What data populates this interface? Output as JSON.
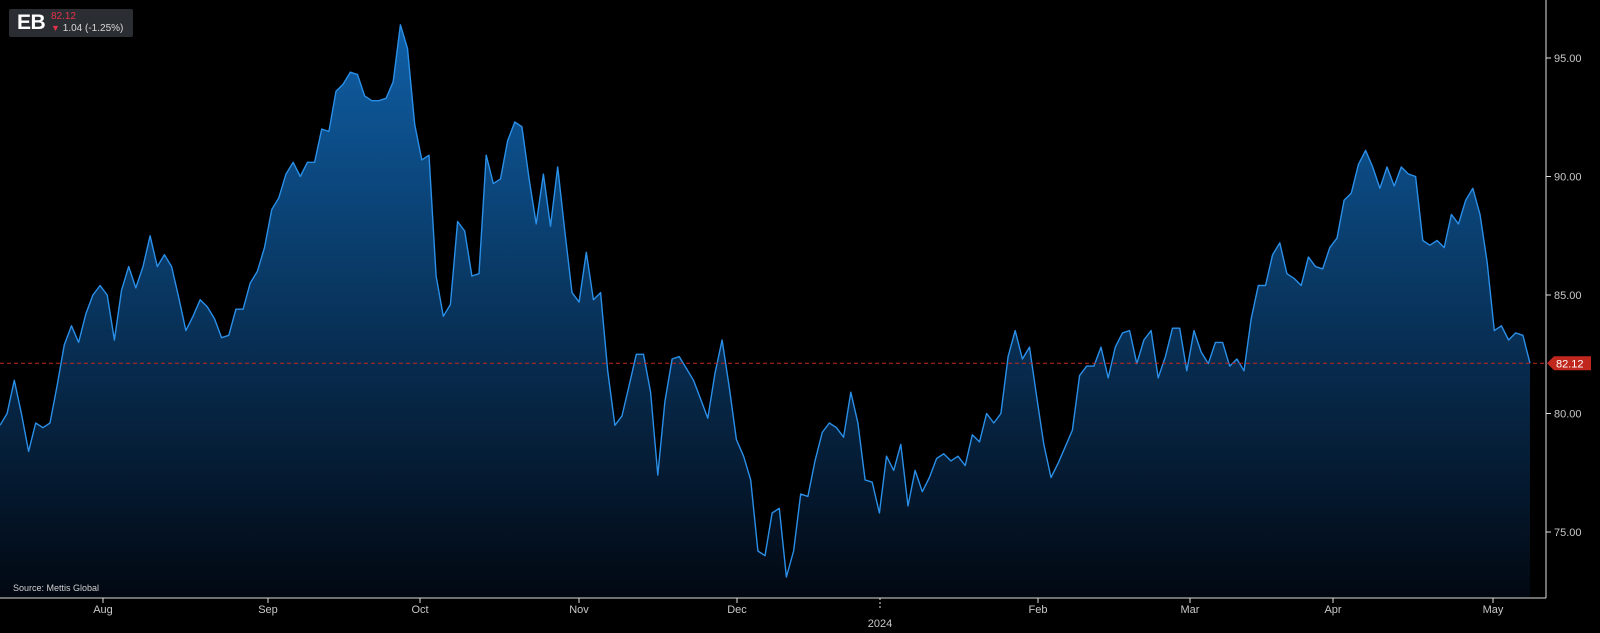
{
  "ticker": {
    "symbol": "EB",
    "price": "82.12",
    "change": "1.04 (-1.25%)"
  },
  "source_note": "Source: Mettis Global",
  "colors": {
    "background": "#000000",
    "line": "#2a8fe8",
    "fill_top": "#0f5fa6",
    "fill_bottom": "#020812",
    "last_price_line": "#c0271d",
    "last_price_label": "#c0271d",
    "negative": "#e2324b"
  },
  "icons": {
    "change_direction": "down-arrow-icon"
  },
  "chart_data": {
    "type": "area",
    "title": "",
    "xlabel": "",
    "ylabel": "",
    "ylim": [
      72.4,
      97.5
    ],
    "grid": false,
    "y_axis_side": "right",
    "yticks": [
      "95.00",
      "90.00",
      "85.00",
      "80.00",
      "75.00"
    ],
    "xticks": [
      "Aug",
      "Sep",
      "Oct",
      "Nov",
      "Dec",
      "2024",
      "Feb",
      "Mar",
      "Apr",
      "May"
    ],
    "last_value": 82.12,
    "last_value_label": "82.12",
    "series": [
      {
        "values": [
          79.5,
          80.0,
          81.4,
          80.0,
          78.4,
          79.6,
          79.4,
          79.6,
          81.2,
          82.9,
          83.7,
          83.0,
          84.2,
          85.0,
          85.4,
          85.0,
          83.1,
          85.2,
          86.2,
          85.3,
          86.2,
          87.5,
          86.2,
          86.7,
          86.2,
          84.9,
          83.5,
          84.1,
          84.8,
          84.5,
          84.0,
          83.2,
          83.3,
          84.4,
          84.4,
          85.5,
          86.0,
          87.0,
          88.6,
          89.1,
          90.1,
          90.6,
          90.0,
          90.6,
          90.6,
          92.0,
          91.9,
          93.6,
          93.9,
          94.4,
          94.3,
          93.4,
          93.2,
          93.2,
          93.3,
          94.0,
          96.4,
          95.4,
          92.2,
          90.7,
          90.9,
          85.8,
          84.1,
          84.6,
          88.1,
          87.7,
          85.8,
          85.9,
          90.9,
          89.7,
          89.9,
          91.5,
          92.3,
          92.1,
          89.9,
          88.0,
          90.1,
          87.9,
          90.4,
          87.7,
          85.1,
          84.7,
          86.8,
          84.8,
          85.1,
          81.8,
          79.5,
          79.9,
          81.2,
          82.5,
          82.5,
          80.9,
          77.4,
          80.5,
          82.3,
          82.4,
          81.9,
          81.4,
          80.6,
          79.8,
          81.7,
          83.1,
          81.1,
          78.9,
          78.2,
          77.2,
          74.2,
          74.0,
          75.8,
          76.0,
          73.1,
          74.2,
          76.6,
          76.5,
          78.0,
          79.2,
          79.6,
          79.4,
          79.0,
          80.9,
          79.6,
          77.2,
          77.1,
          75.8,
          78.2,
          77.6,
          78.7,
          76.1,
          77.6,
          76.7,
          77.3,
          78.1,
          78.3,
          78.0,
          78.2,
          77.8,
          79.1,
          78.8,
          80.0,
          79.6,
          80.0,
          82.4,
          83.5,
          82.3,
          82.8,
          80.7,
          78.7,
          77.3,
          77.9,
          78.6,
          79.3,
          81.6,
          82.0,
          82.0,
          82.8,
          81.5,
          82.8,
          83.4,
          83.5,
          82.1,
          83.1,
          83.5,
          81.5,
          82.4,
          83.6,
          83.6,
          81.8,
          83.5,
          82.6,
          82.1,
          83.0,
          83.0,
          82.0,
          82.3,
          81.8,
          84.0,
          85.4,
          85.4,
          86.7,
          87.2,
          85.9,
          85.7,
          85.4,
          86.6,
          86.2,
          86.1,
          87.0,
          87.4,
          89.0,
          89.3,
          90.5,
          91.1,
          90.4,
          89.5,
          90.4,
          89.6,
          90.4,
          90.1,
          90.0,
          87.3,
          87.1,
          87.3,
          87.0,
          88.4,
          88.0,
          89.0,
          89.5,
          88.4,
          86.4,
          83.5,
          83.7,
          83.1,
          83.4,
          83.3,
          82.12
        ]
      }
    ]
  }
}
